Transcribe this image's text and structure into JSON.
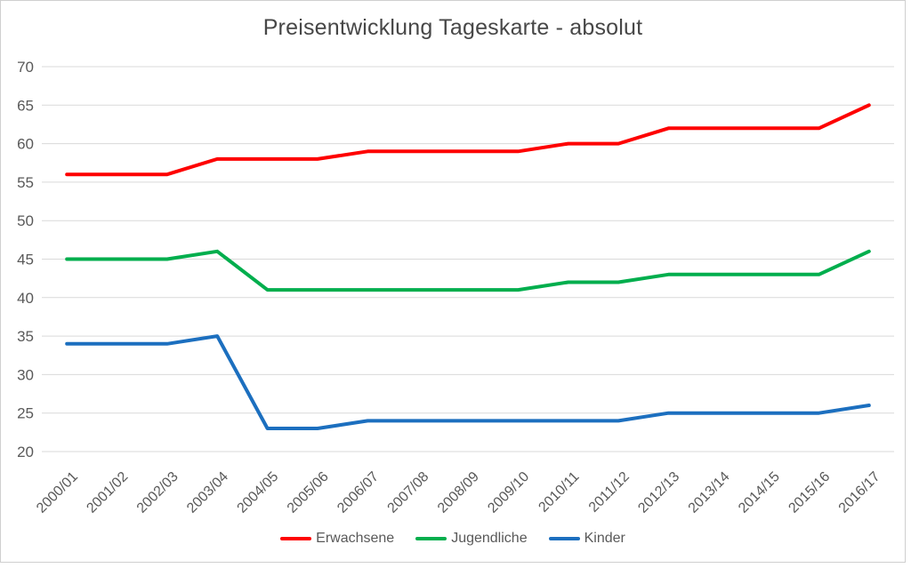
{
  "title": "Preisentwicklung Tageskarte - absolut",
  "chart_data": {
    "type": "line",
    "title": "Preisentwicklung Tageskarte - absolut",
    "categories": [
      "2000/01",
      "2001/02",
      "2002/03",
      "2003/04",
      "2004/05",
      "2005/06",
      "2006/07",
      "2007/08",
      "2008/09",
      "2009/10",
      "2010/11",
      "2011/12",
      "2012/13",
      "2013/14",
      "2014/15",
      "2015/16",
      "2016/17"
    ],
    "series": [
      {
        "name": "Erwachsene",
        "color": "#fe0000",
        "values": [
          56,
          56,
          56,
          58,
          58,
          58,
          59,
          59,
          59,
          59,
          60,
          60,
          62,
          62,
          62,
          62,
          65
        ]
      },
      {
        "name": "Jugendliche",
        "color": "#00ae4d",
        "values": [
          45,
          45,
          45,
          46,
          41,
          41,
          41,
          41,
          41,
          41,
          42,
          42,
          43,
          43,
          43,
          43,
          46
        ]
      },
      {
        "name": "Kinder",
        "color": "#1c6fbf",
        "values": [
          34,
          34,
          34,
          35,
          23,
          23,
          24,
          24,
          24,
          24,
          24,
          24,
          25,
          25,
          25,
          25,
          26
        ]
      }
    ],
    "ylim": [
      20,
      70
    ],
    "ytick_step": 5,
    "yticks": [
      20,
      25,
      30,
      35,
      40,
      45,
      50,
      55,
      60,
      65,
      70
    ],
    "grid": true,
    "legend_position": "bottom",
    "xlabel": "",
    "ylabel": ""
  },
  "style": {
    "axis_label_color": "#595959",
    "gridline_color": "#d9d9d9",
    "title_color": "#474747",
    "frame_border_color": "#cfcfcf",
    "background": "#ffffff"
  }
}
